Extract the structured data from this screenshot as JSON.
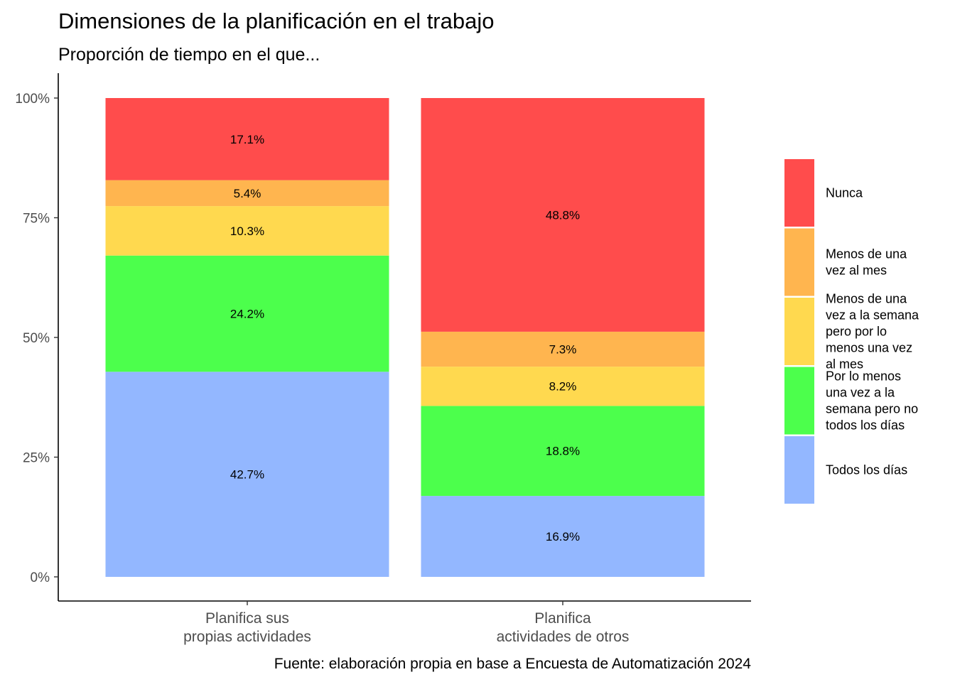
{
  "chart_data": {
    "type": "bar",
    "stacked": true,
    "percent": true,
    "title": "Dimensiones de la planificación en el trabajo",
    "subtitle": "Proporción de tiempo en el que...",
    "caption": "Fuente: elaboración propia en base a Encuesta de Automatización 2024",
    "categories": [
      [
        "Planifica sus",
        "propias actividades"
      ],
      [
        "Planifica",
        "actividades de otros"
      ]
    ],
    "ylim": [
      0,
      100
    ],
    "yticks": [
      0,
      25,
      50,
      75,
      100
    ],
    "ytick_labels": [
      "0%",
      "25%",
      "50%",
      "75%",
      "100%"
    ],
    "legend_position": "right",
    "grid": false,
    "series": [
      {
        "name": "Todos los días",
        "legend_lines": [
          "Todos los días"
        ],
        "color": "#93B7FF",
        "values": [
          42.7,
          16.9
        ],
        "labels": [
          "42.7%",
          "16.9%"
        ]
      },
      {
        "name": "Por lo menos una vez a la semana pero no todos los días",
        "legend_lines": [
          "Por lo menos",
          "una vez a la",
          "semana pero no",
          "todos los días"
        ],
        "color": "#4CFF4C",
        "values": [
          24.2,
          18.8
        ],
        "labels": [
          "24.2%",
          "18.8%"
        ]
      },
      {
        "name": "Menos de una vez a la semana pero por lo menos una vez al mes",
        "legend_lines": [
          "Menos de una",
          "vez a la semana",
          "pero por lo",
          "menos una vez",
          "al mes"
        ],
        "color": "#FFD94F",
        "values": [
          10.3,
          8.2
        ],
        "labels": [
          "10.3%",
          "8.2%"
        ]
      },
      {
        "name": "Menos de una vez al mes",
        "legend_lines": [
          "Menos de una",
          "vez al mes"
        ],
        "color": "#FFB54F",
        "values": [
          5.4,
          7.3
        ],
        "labels": [
          "5.4%",
          "7.3%"
        ]
      },
      {
        "name": "Nunca",
        "legend_lines": [
          "Nunca"
        ],
        "color": "#FF4C4C",
        "values": [
          17.1,
          48.8
        ],
        "labels": [
          "17.1%",
          "48.8%"
        ]
      }
    ]
  }
}
